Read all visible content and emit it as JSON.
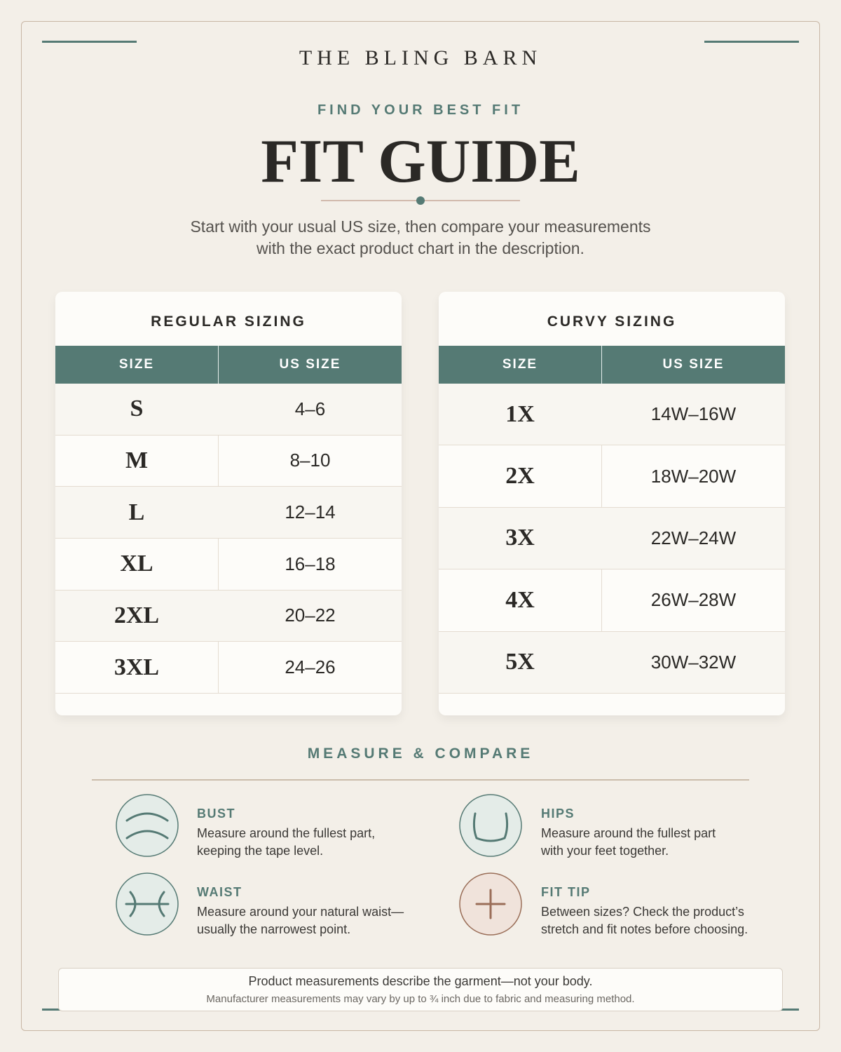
{
  "header": {
    "brand": "THE BLING BARN",
    "eyebrow": "FIND YOUR BEST FIT",
    "title": "FIT GUIDE",
    "intro": [
      "Start with your usual US size, then compare your measurements",
      "with the exact product chart in the description."
    ]
  },
  "tables": [
    {
      "title": "REGULAR SIZING",
      "headers": [
        "SIZE",
        "US SIZE"
      ],
      "rows": [
        [
          "S",
          "4–6"
        ],
        [
          "M",
          "8–10"
        ],
        [
          "L",
          "12–14"
        ],
        [
          "XL",
          "16–18"
        ],
        [
          "2XL",
          "20–22"
        ],
        [
          "3XL",
          "24–26"
        ]
      ]
    },
    {
      "title": "CURVY SIZING",
      "headers": [
        "SIZE",
        "US SIZE"
      ],
      "rows": [
        [
          "1X",
          "14W–16W"
        ],
        [
          "2X",
          "18W–20W"
        ],
        [
          "3X",
          "22W–24W"
        ],
        [
          "4X",
          "26W–28W"
        ],
        [
          "5X",
          "30W–32W"
        ]
      ]
    }
  ],
  "measure": {
    "title": "MEASURE & COMPARE",
    "items": [
      {
        "label": "BUST",
        "text": [
          "Measure around the fullest part,",
          "keeping the tape level."
        ]
      },
      {
        "label": "HIPS",
        "text": [
          "Measure around the fullest part",
          "with your feet together."
        ]
      },
      {
        "label": "WAIST",
        "text": [
          "Measure around your natural waist—",
          "usually the narrowest point."
        ]
      },
      {
        "label": "FIT TIP",
        "text": [
          "Between sizes? Check the product’s",
          "stretch and fit notes before choosing."
        ]
      }
    ]
  },
  "note": [
    "Product measurements describe the garment—not your body.",
    "Manufacturer measurements may vary by up to ¾ inch due to fabric and measuring method."
  ]
}
